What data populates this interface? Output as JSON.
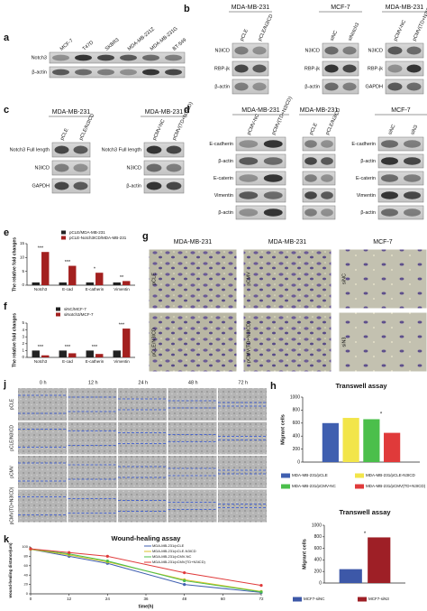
{
  "panel_letters": [
    "a",
    "b",
    "c",
    "d",
    "e",
    "f",
    "g",
    "h",
    "j",
    "k"
  ],
  "blots": [
    {
      "lanes": [
        "MCF-7",
        "T47D",
        "SKBR3",
        "MDA-MB-231Z",
        "MDA-MB-231G",
        "BT-549"
      ],
      "rows": [
        "Notch3",
        "β-actin"
      ]
    },
    {
      "header": "MDA-MB-231",
      "lanes": [
        "pCLE",
        "pCLE/N3ICD"
      ],
      "rows": [
        "N3ICD",
        "RBP-jk",
        "β-actin"
      ]
    },
    {
      "header": "MCF-7",
      "lanes": [
        "siNC",
        "siNotch3"
      ],
      "rows": [
        "N3ICD",
        "RBP-jk",
        "β-actin"
      ]
    },
    {
      "header": "MDA-MB-231",
      "lanes": [
        "pCMV-NC",
        "pCMV(TD+N3ICD)"
      ],
      "rows": [
        "N3ICD",
        "RBP-jk",
        "GAPDH"
      ]
    },
    {
      "header": "MDA-MB-231",
      "lanes": [
        "pCLE",
        "pCLE/N3ICD"
      ],
      "rows": [
        "Notch3 Full length",
        "N3ICD",
        "GAPDH"
      ]
    },
    {
      "header": "MDA-MB-231",
      "lanes": [
        "pCMV-NC",
        "pCMV(TD+N3ICD)"
      ],
      "rows": [
        "Notch3 Full length",
        "N3ICD",
        "β-actin"
      ]
    },
    {
      "header": "MDA-MB-231",
      "lanes": [
        "pCMV-NC",
        "pCMV(TD+N3ICD)"
      ],
      "rows": [
        "E-cadherin",
        "β-actin",
        "E-caterin",
        "Vimentin",
        "β-actin"
      ]
    },
    {
      "header": "MDA-MB-231",
      "lanes": [
        "pCLE",
        "pCLE/N3ICD"
      ]
    },
    {
      "header": "MCF-7",
      "lanes": [
        "siNC",
        "siN3"
      ],
      "rows": [
        "E-cadherin",
        "β-actin",
        "E-caterin",
        "Vimentin",
        "β-actin"
      ]
    }
  ],
  "micrographs": {
    "headers": [
      "MDA-MB-231",
      "MDA-MB-231",
      "MCF-7"
    ],
    "labels": [
      "pCLE",
      "pCMV",
      "siNC",
      "pCLE/N3ICD",
      "pCMV(TD+N3ICD)",
      "siN3"
    ]
  },
  "wound_images": {
    "times": [
      "0 h",
      "12 h",
      "24 h",
      "48 h",
      "72 h"
    ],
    "rows": [
      "pCLE",
      "pCLE/N3ICD",
      "pCMV",
      "pCMV(TD+N3ICD)"
    ]
  },
  "chart_data": [
    {
      "type": "bar",
      "ylabel": "The relative fold changes",
      "categories": [
        "Notch3",
        "E-cad",
        "E-catherin",
        "Vimentin"
      ],
      "series": [
        {
          "name": "pCLE/MDA-MB-231",
          "color": "#222222",
          "values": [
            1,
            1,
            1,
            1
          ]
        },
        {
          "name": "pCLE-Notch3ICD/MDA-MB-231",
          "color": "#a3201f",
          "values": [
            12,
            7,
            4.5,
            1.5
          ]
        }
      ],
      "annotations": [
        "***",
        "***",
        "*",
        "**"
      ],
      "ylim": [
        0,
        15
      ],
      "yticks": [
        0,
        5,
        10,
        15
      ]
    },
    {
      "type": "bar",
      "ylabel": "The relative fold changes",
      "categories": [
        "Notch3",
        "E-cad",
        "E-catherin",
        "Vimentin"
      ],
      "series": [
        {
          "name": "siNC/MCF-7",
          "color": "#222222",
          "values": [
            1,
            1,
            1,
            1
          ]
        },
        {
          "name": "siNotch3/MCF-7",
          "color": "#a3201f",
          "values": [
            0.3,
            0.6,
            0.5,
            4.2
          ]
        }
      ],
      "annotations": [
        "***",
        "***",
        "***",
        "***"
      ],
      "ylim": [
        0,
        5
      ],
      "yticks": [
        0,
        1,
        2,
        3,
        4,
        5
      ]
    },
    {
      "type": "bar",
      "title": "Transwell assay",
      "ylabel": "Migrant cells",
      "categories": [
        null
      ],
      "series": [
        {
          "name": "MDA-MB-231/pCLE",
          "color": "#3f5fb0",
          "values": [
            600
          ]
        },
        {
          "name": "MDA-MB-231/pCLE-N3ICD",
          "color": "#f2e54a",
          "values": [
            680
          ]
        },
        {
          "name": "MDA-MB-231/pCMV-NC",
          "color": "#4bbf4b",
          "values": [
            660
          ]
        },
        {
          "name": "MDA-MB-231/pCMV(TD+N3ICD)",
          "color": "#e03a3a",
          "values": [
            450
          ]
        }
      ],
      "annotations": [
        "*"
      ],
      "ylim": [
        0,
        1000
      ],
      "yticks": [
        0,
        200,
        400,
        600,
        800,
        1000
      ]
    },
    {
      "type": "bar",
      "title": "Transwell assay",
      "ylabel": "Migrant cells",
      "categories": [
        null
      ],
      "series": [
        {
          "name": "MCF7-siNC",
          "color": "#3d58a8",
          "values": [
            240
          ]
        },
        {
          "name": "MCF7-siN3",
          "color": "#9e1f26",
          "values": [
            790
          ]
        }
      ],
      "annotations": [
        "*"
      ],
      "ylim": [
        0,
        1000
      ],
      "yticks": [
        0,
        200,
        400,
        600,
        800,
        1000
      ]
    },
    {
      "type": "line",
      "title": "Wound-healing assay",
      "xlabel": "time(h)",
      "ylabel": "wound-healing distance(um)",
      "x": [
        0,
        12,
        24,
        48,
        72
      ],
      "series": [
        {
          "name": "MDA-MB-231/pCLE",
          "color": "#3f5fb0",
          "values": [
            95,
            80,
            65,
            20,
            3
          ]
        },
        {
          "name": "MDA-MB-231/pCLE-N3ICD",
          "color": "#d9c22a",
          "values": [
            95,
            83,
            68,
            30,
            5
          ]
        },
        {
          "name": "MDA-MB-231/pCMV-NC",
          "color": "#4bbf4b",
          "values": [
            96,
            85,
            70,
            28,
            4
          ]
        },
        {
          "name": "MDA-MB-231/pCMV(TD+N3ICD)",
          "color": "#e03a3a",
          "values": [
            96,
            88,
            80,
            45,
            18
          ]
        }
      ],
      "xlim": [
        0,
        72
      ],
      "xticks": [
        0,
        12,
        24,
        36,
        48,
        60,
        72
      ],
      "ylim": [
        0,
        100
      ],
      "yticks": [
        0,
        20,
        40,
        60,
        80,
        100
      ]
    }
  ]
}
